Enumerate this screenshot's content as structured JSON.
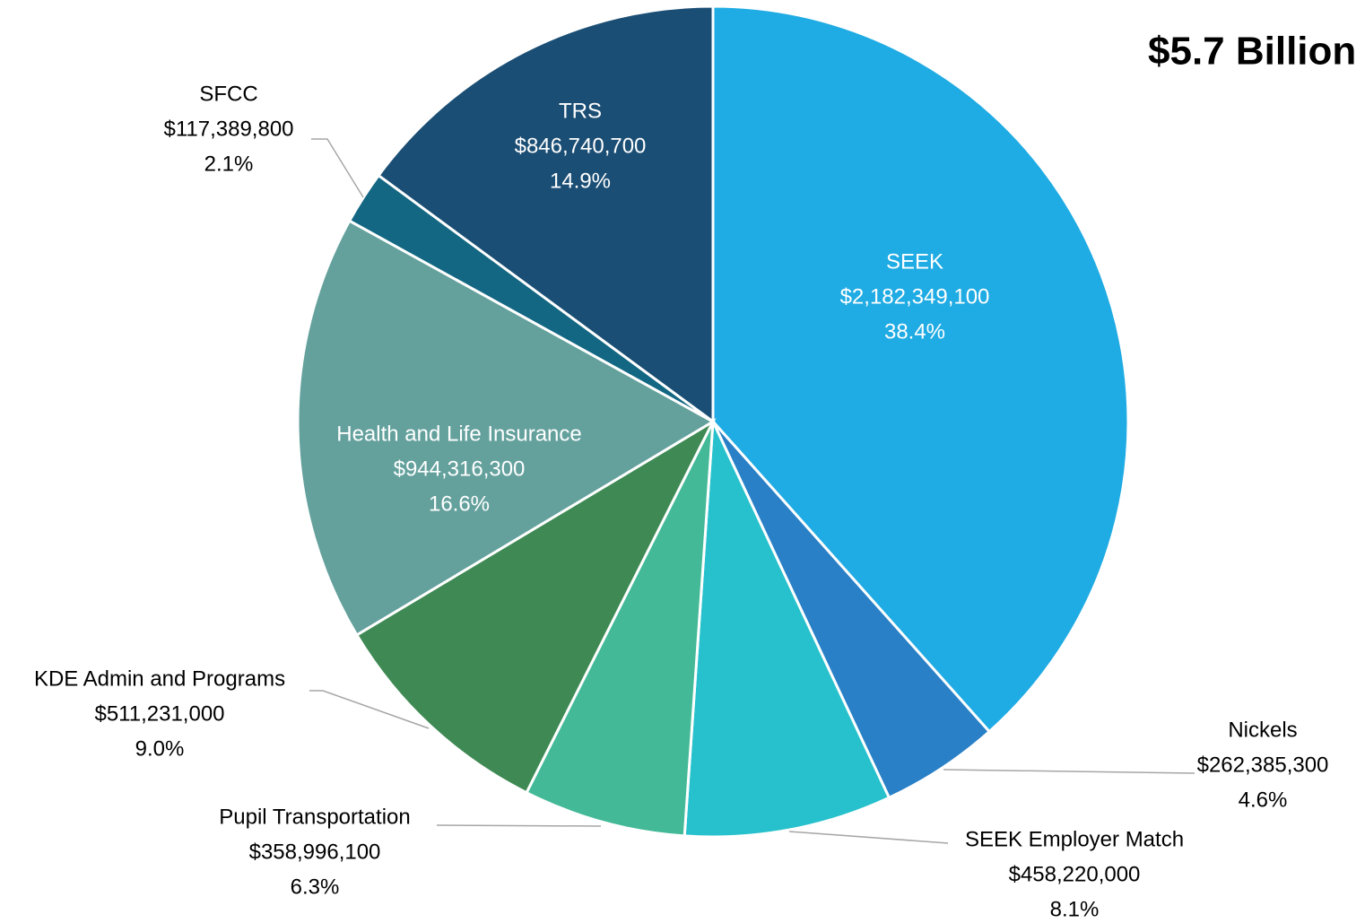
{
  "chart_data": {
    "type": "pie",
    "title": "$5.7 Billion",
    "categories": [
      "SEEK",
      "Nickels",
      "SEEK Employer Match",
      "Pupil Transportation",
      "KDE Admin and Programs",
      "Health and Life Insurance",
      "SFCC",
      "TRS"
    ],
    "values": [
      2182349100,
      262385300,
      458220000,
      358996100,
      511231000,
      944316300,
      117389800,
      846740700
    ],
    "value_labels": [
      "$2,182,349,100",
      "$262,385,300",
      "$458,220,000",
      "$358,996,100",
      "$511,231,000",
      "$944,316,300",
      "$117,389,800",
      "$846,740,700"
    ],
    "percent_labels": [
      "38.4%",
      "4.6%",
      "8.1%",
      "6.3%",
      "9.0%",
      "16.6%",
      "2.1%",
      "14.9%"
    ],
    "colors": [
      "#1fabe3",
      "#2980c6",
      "#26c1cc",
      "#43b997",
      "#3f8a54",
      "#64a19d",
      "#136783",
      "#1b4e74"
    ]
  }
}
